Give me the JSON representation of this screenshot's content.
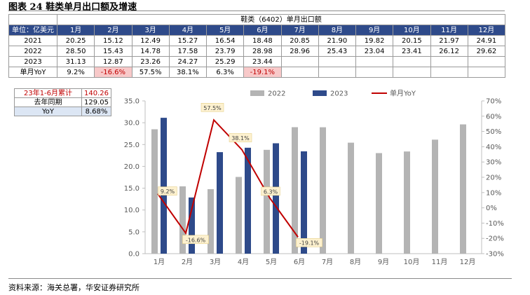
{
  "figure_title": "图表 24 鞋类单月出口额及增速",
  "footer": "资料来源：海关总署，华安证券研究所",
  "table": {
    "caption": "鞋类（6402）单月出口额",
    "unit_label": "单位：亿美元",
    "months": [
      "1月",
      "2月",
      "3月",
      "4月",
      "5月",
      "6月",
      "7月",
      "8月",
      "9月",
      "10月",
      "11月",
      "12月"
    ],
    "rows": [
      {
        "label": "2021",
        "cells": [
          "20.25",
          "15.12",
          "12.49",
          "15.27",
          "16.54",
          "18.48",
          "20.85",
          "21.90",
          "19.82",
          "20.15",
          "21.97",
          "24.91"
        ]
      },
      {
        "label": "2022",
        "cells": [
          "28.50",
          "15.43",
          "14.78",
          "17.58",
          "23.79",
          "28.98",
          "28.96",
          "25.43",
          "23.04",
          "23.41",
          "26.12",
          "29.62"
        ]
      },
      {
        "label": "2023",
        "cells": [
          "31.13",
          "12.87",
          "23.26",
          "24.27",
          "25.29",
          "23.44",
          "",
          "",
          "",
          "",
          "",
          ""
        ]
      },
      {
        "label": "单月YoY",
        "cells": [
          "9.2%",
          "-16.6%",
          "57.5%",
          "38.1%",
          "6.3%",
          "-19.1%",
          "",
          "",
          "",
          "",
          "",
          ""
        ]
      }
    ]
  },
  "side_table": {
    "rows": [
      {
        "label": "23年1-6月累计",
        "value": "140.26"
      },
      {
        "label": "去年同期",
        "value": "129.05"
      },
      {
        "label": "YoY",
        "value": "8.68%"
      }
    ]
  },
  "colors": {
    "bar_2022": "#b4b4b4",
    "bar_2023": "#2e4a8a",
    "line_yoy": "#c00000",
    "header_bg": "#2e4a8a",
    "label_bg": "#fdf1cf"
  },
  "chart_data": {
    "type": "bar",
    "categories": [
      "1月",
      "2月",
      "3月",
      "4月",
      "5月",
      "6月",
      "7月",
      "8月",
      "9月",
      "10月",
      "11月",
      "12月"
    ],
    "series": [
      {
        "name": "2022",
        "type": "bar",
        "axis": "left",
        "values": [
          28.5,
          15.43,
          14.78,
          17.58,
          23.79,
          28.98,
          28.96,
          25.43,
          23.04,
          23.41,
          26.12,
          29.62
        ]
      },
      {
        "name": "2023",
        "type": "bar",
        "axis": "left",
        "values": [
          31.13,
          12.87,
          23.26,
          24.27,
          25.29,
          23.44,
          null,
          null,
          null,
          null,
          null,
          null
        ]
      },
      {
        "name": "单月YoY",
        "type": "line",
        "axis": "right",
        "values": [
          9.2,
          -16.6,
          57.5,
          38.1,
          6.3,
          -19.1,
          null,
          null,
          null,
          null,
          null,
          null
        ],
        "labels": [
          "9.2%",
          "-16.6%",
          "57.5%",
          "38.1%",
          "6.3%",
          "-19.1%"
        ]
      }
    ],
    "yticks_left": [
      "0.0",
      "5.0",
      "10.0",
      "15.0",
      "20.0",
      "25.0",
      "30.0",
      "35.0"
    ],
    "yticks_right": [
      "-30%",
      "-20%",
      "-10%",
      "0%",
      "10%",
      "20%",
      "30%",
      "40%",
      "50%",
      "60%",
      "70%"
    ],
    "ylim_left": [
      0,
      35
    ],
    "ylim_right": [
      -30,
      70
    ],
    "legend_position": "top",
    "grid": false
  }
}
